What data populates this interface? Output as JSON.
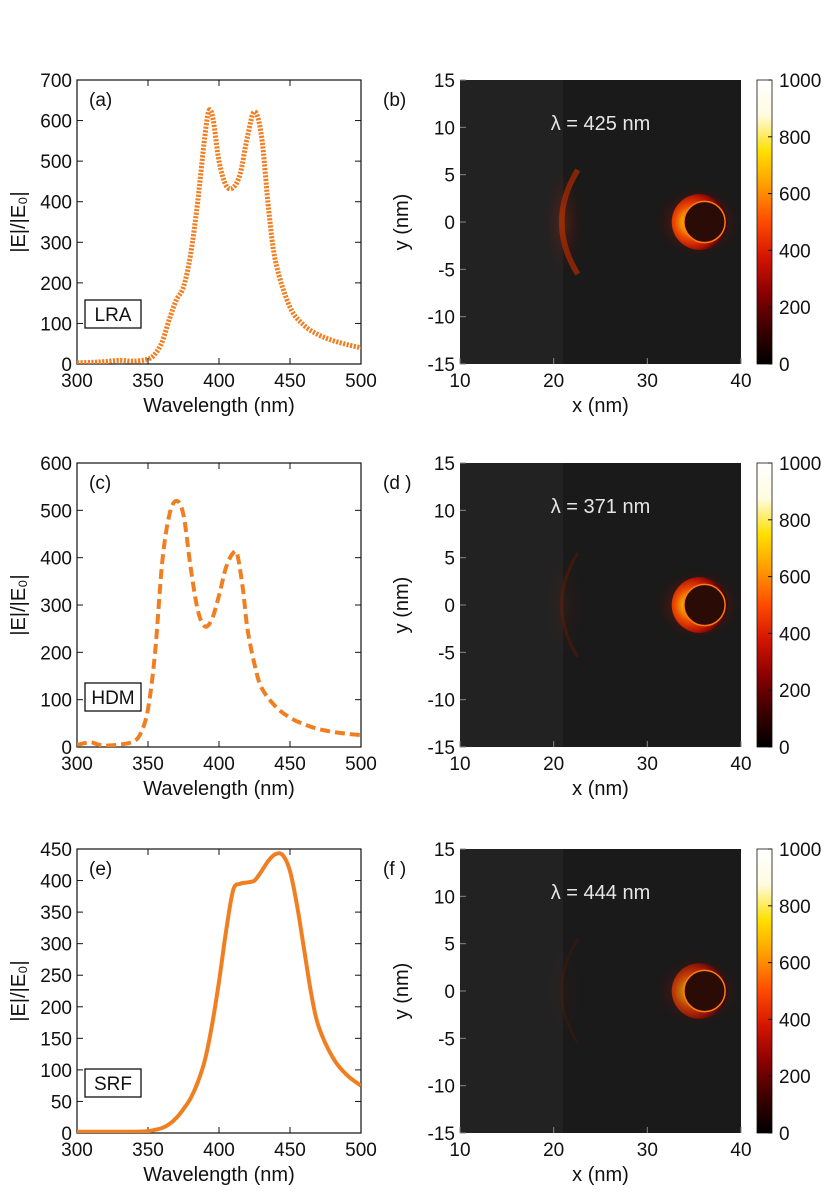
{
  "colors": {
    "curve": "#f07f22",
    "axis": "#111111",
    "map_background": "#1a1a1a",
    "colormap": [
      "#000000",
      "#3b0000",
      "#8a0000",
      "#d21400",
      "#ff4a00",
      "#ff9a00",
      "#ffe000",
      "#fffbe0",
      "#ffffff"
    ]
  },
  "chart_data": [
    {
      "id": "a",
      "type": "line",
      "panel_label": "(a)",
      "box_label": "LRA",
      "line_style": "dotted",
      "xlabel": "Wavelength (nm)",
      "ylabel": "|E|/|E₀|",
      "xlim": [
        300,
        500
      ],
      "ylim": [
        0,
        700
      ],
      "xticks": [
        300,
        350,
        400,
        450,
        500
      ],
      "yticks": [
        0,
        100,
        200,
        300,
        400,
        500,
        600,
        700
      ],
      "x": [
        300,
        310,
        320,
        330,
        340,
        350,
        355,
        360,
        365,
        370,
        375,
        380,
        385,
        390,
        393,
        396,
        400,
        405,
        410,
        415,
        420,
        425,
        430,
        435,
        440,
        450,
        460,
        470,
        480,
        490,
        500
      ],
      "y": [
        3,
        4,
        6,
        9,
        7,
        12,
        25,
        55,
        110,
        158,
        190,
        270,
        400,
        560,
        625,
        600,
        500,
        440,
        435,
        470,
        560,
        622,
        560,
        380,
        250,
        140,
        95,
        72,
        58,
        48,
        40
      ]
    },
    {
      "id": "b",
      "type": "heatmap",
      "panel_label": "(b)",
      "annotation": "λ = 425 nm",
      "xlabel": "x (nm)",
      "ylabel": "y (nm)",
      "xlim": [
        10,
        40
      ],
      "ylim": [
        -15,
        15
      ],
      "xticks": [
        10,
        20,
        30,
        40
      ],
      "yticks": [
        -15,
        -10,
        -5,
        0,
        5,
        10,
        15
      ],
      "colorbar_ticks": [
        0,
        200,
        400,
        600,
        800,
        1000
      ],
      "left_arc_intensity": 0.6,
      "right_hotspot_intensity": 1.0
    },
    {
      "id": "c",
      "type": "line",
      "panel_label": "(c)",
      "box_label": "HDM",
      "line_style": "dashed",
      "xlabel": "Wavelength (nm)",
      "ylabel": "|E|/|E₀|",
      "xlim": [
        300,
        500
      ],
      "ylim": [
        0,
        600
      ],
      "xticks": [
        300,
        350,
        400,
        450,
        500
      ],
      "yticks": [
        0,
        100,
        200,
        300,
        400,
        500,
        600
      ],
      "x": [
        300,
        305,
        310,
        315,
        320,
        330,
        340,
        345,
        350,
        355,
        360,
        365,
        370,
        375,
        380,
        385,
        390,
        395,
        400,
        405,
        410,
        413,
        417,
        420,
        425,
        430,
        440,
        450,
        460,
        470,
        480,
        490,
        500
      ],
      "y": [
        4,
        8,
        10,
        5,
        3,
        5,
        12,
        30,
        80,
        200,
        390,
        490,
        520,
        490,
        380,
        290,
        255,
        270,
        320,
        380,
        410,
        405,
        330,
        250,
        175,
        125,
        85,
        62,
        48,
        38,
        32,
        28,
        25
      ]
    },
    {
      "id": "d",
      "type": "heatmap",
      "panel_label": "(d )",
      "annotation": "λ = 371 nm",
      "xlabel": "x (nm)",
      "ylabel": "y (nm)",
      "xlim": [
        10,
        40
      ],
      "ylim": [
        -15,
        15
      ],
      "xticks": [
        10,
        20,
        30,
        40
      ],
      "yticks": [
        -15,
        -10,
        -5,
        0,
        5,
        10,
        15
      ],
      "colorbar_ticks": [
        0,
        200,
        400,
        600,
        800,
        1000
      ],
      "left_arc_intensity": 0.2,
      "right_hotspot_intensity": 1.0
    },
    {
      "id": "e",
      "type": "line",
      "panel_label": "(e)",
      "box_label": "SRF",
      "line_style": "solid",
      "xlabel": "Wavelength (nm)",
      "ylabel": "|E|/|E₀|",
      "xlim": [
        300,
        500
      ],
      "ylim": [
        0,
        450
      ],
      "xticks": [
        300,
        350,
        400,
        450,
        500
      ],
      "yticks": [
        0,
        50,
        100,
        150,
        200,
        250,
        300,
        350,
        400,
        450
      ],
      "x": [
        300,
        320,
        340,
        350,
        355,
        360,
        365,
        370,
        375,
        380,
        385,
        390,
        395,
        400,
        405,
        410,
        415,
        420,
        425,
        430,
        435,
        440,
        445,
        450,
        455,
        460,
        465,
        470,
        480,
        490,
        500
      ],
      "y": [
        2,
        2,
        2,
        3,
        5,
        8,
        14,
        24,
        38,
        55,
        80,
        115,
        170,
        240,
        320,
        385,
        395,
        397,
        400,
        415,
        432,
        442,
        440,
        415,
        360,
        290,
        220,
        170,
        120,
        92,
        75
      ]
    },
    {
      "id": "f",
      "type": "heatmap",
      "panel_label": "(f )",
      "annotation": "λ = 444 nm",
      "xlabel": "x (nm)",
      "ylabel": "y (nm)",
      "xlim": [
        10,
        40
      ],
      "ylim": [
        -15,
        15
      ],
      "xticks": [
        10,
        20,
        30,
        40
      ],
      "yticks": [
        -15,
        -10,
        -5,
        0,
        5,
        10,
        15
      ],
      "colorbar_ticks": [
        0,
        200,
        400,
        600,
        800,
        1000
      ],
      "left_arc_intensity": 0.1,
      "right_hotspot_intensity": 0.75
    }
  ]
}
